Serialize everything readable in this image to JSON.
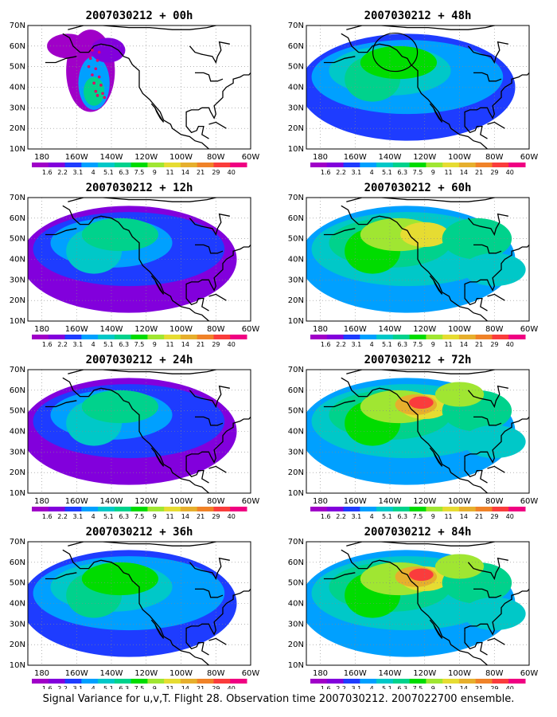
{
  "caption": "Signal Variance for u,v,T. Flight 28. Observation time 2007030212. 2007022700 ensemble.",
  "colorbar": {
    "labels": [
      "1.6",
      "2.2",
      "3.1",
      "4",
      "5.1",
      "6.3",
      "7.5",
      "9",
      "11",
      "14",
      "21",
      "29",
      "40"
    ],
    "colors": [
      "#a000c8",
      "#8200dc",
      "#1e3cff",
      "#00a0ff",
      "#00c8c8",
      "#00d28c",
      "#00dc00",
      "#a0e632",
      "#e6dc32",
      "#e6af2d",
      "#f08228",
      "#fa3c3c",
      "#f00082"
    ]
  },
  "axes": {
    "x_ticks": [
      "180",
      "160W",
      "140W",
      "120W",
      "100W",
      "80W",
      "60W"
    ],
    "y_ticks": [
      "10N",
      "20N",
      "30N",
      "40N",
      "50N",
      "60N",
      "70N"
    ]
  },
  "panels": [
    {
      "title": "2007030212 + 00h",
      "level": 0
    },
    {
      "title": "2007030212 + 48h",
      "level": 2
    },
    {
      "title": "2007030212 + 12h",
      "level": 1
    },
    {
      "title": "2007030212 + 60h",
      "level": 3
    },
    {
      "title": "2007030212 + 24h",
      "level": 1
    },
    {
      "title": "2007030212 + 72h",
      "level": 4
    },
    {
      "title": "2007030212 + 36h",
      "level": 2
    },
    {
      "title": "2007030212 + 84h",
      "level": 4
    }
  ]
}
